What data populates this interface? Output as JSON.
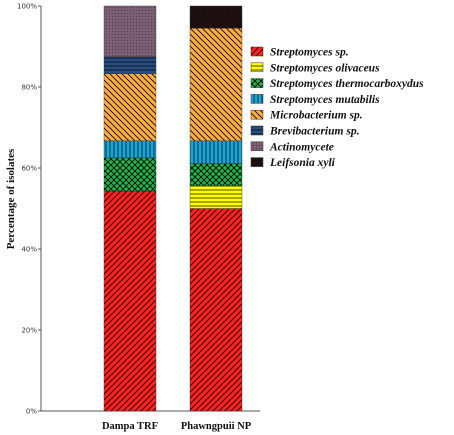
{
  "chart_data": {
    "type": "bar",
    "stacked": true,
    "categories": [
      "Dampa TRF",
      "Phawngpuii NP"
    ],
    "ylabel": "Percentage of isolates",
    "xlabel": "",
    "ylim": [
      0,
      100
    ],
    "yticks": [
      "0%",
      "20%",
      "40%",
      "60%",
      "80%",
      "100%"
    ],
    "grid": false,
    "legend_position": "right",
    "series": [
      {
        "name": "Streptomyces sp.",
        "values": [
          54.2,
          50.0
        ],
        "color": "#ff2020",
        "pattern": "hatch-diag"
      },
      {
        "name": "Streptomyces olivaceus",
        "values": [
          0,
          5.6
        ],
        "color": "#ffff00",
        "pattern": "hatch-horiz"
      },
      {
        "name": "Streptomyces thermocarboxydus",
        "values": [
          8.3,
          5.5
        ],
        "color": "#22b34a",
        "pattern": "crosshatch"
      },
      {
        "name": "Streptomyces mutabilis",
        "values": [
          4.2,
          5.6
        ],
        "color": "#1aa6d6",
        "pattern": "hatch-vert"
      },
      {
        "name": "Microbacterium sp.",
        "values": [
          16.6,
          27.8
        ],
        "color": "#ffae3a",
        "pattern": "hatch-diag-rev"
      },
      {
        "name": "Brevibacterium sp.",
        "values": [
          4.2,
          0
        ],
        "color": "#284d80",
        "pattern": "hatch-horiz"
      },
      {
        "name": "Actinomycete",
        "values": [
          12.5,
          0
        ],
        "color": "#7a5f75",
        "pattern": "dots"
      },
      {
        "name": "Leifsonia xyli",
        "values": [
          0,
          5.5
        ],
        "color": "#1e0f12",
        "pattern": "dots"
      }
    ]
  }
}
